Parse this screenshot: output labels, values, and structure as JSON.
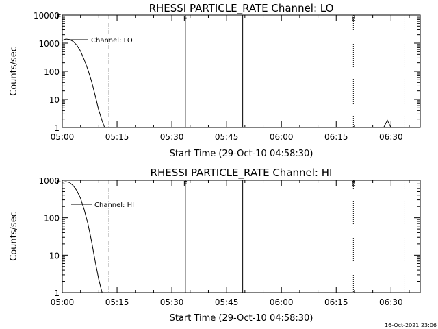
{
  "footer_timestamp": "16-Oct-2021 23:06",
  "chart_data": [
    {
      "type": "line",
      "title": "RHESSI PARTICLE_RATE Channel: LO",
      "xlabel": "Start Time (29-Oct-10 04:58:30)",
      "ylabel": "Counts/sec",
      "y_scale": "log",
      "ylim": [
        1,
        10000
      ],
      "y_ticks": [
        1,
        10,
        100,
        1000,
        10000
      ],
      "y_tick_labels": [
        "1",
        "10",
        "100",
        "1000",
        "10000"
      ],
      "xlim_minutes": [
        0,
        98
      ],
      "x_ticks_minutes": [
        0,
        15,
        30,
        45,
        60,
        75,
        90
      ],
      "x_tick_labels": [
        "05:00",
        "05:15",
        "05:30",
        "05:45",
        "06:00",
        "06:15",
        "06:30"
      ],
      "legend_label": "Channel: LO",
      "legend_placement": "top-left",
      "series": [
        {
          "x_minutes": [
            0,
            1,
            2,
            3,
            4,
            5,
            6,
            7,
            8,
            9,
            10,
            11,
            11.6
          ],
          "y": [
            1250,
            1400,
            1350,
            1150,
            850,
            520,
            260,
            115,
            45,
            14,
            4,
            1.6,
            1
          ]
        },
        {
          "x_minutes": [
            88,
            88.5,
            89,
            89.5,
            90
          ],
          "y": [
            1,
            1.35,
            1.8,
            1.35,
            1
          ]
        }
      ],
      "markers": [
        {
          "x_minutes": 12.8,
          "style": "dashdot",
          "label": ""
        },
        {
          "x_minutes": 33.7,
          "style": "solid",
          "label": "F"
        },
        {
          "x_minutes": 49.4,
          "style": "solid",
          "label": ""
        },
        {
          "x_minutes": 79.7,
          "style": "dotted",
          "label": "E"
        },
        {
          "x_minutes": 93.6,
          "style": "dotted",
          "label": ""
        }
      ],
      "corner_label": "E"
    },
    {
      "type": "line",
      "title": "RHESSI PARTICLE_RATE Channel: HI",
      "xlabel": "Start Time (29-Oct-10 04:58:30)",
      "ylabel": "Counts/sec",
      "y_scale": "log",
      "ylim": [
        1,
        1000
      ],
      "y_ticks": [
        1,
        10,
        100,
        1000
      ],
      "y_tick_labels": [
        "1",
        "10",
        "100",
        "1000"
      ],
      "xlim_minutes": [
        0,
        98
      ],
      "x_ticks_minutes": [
        0,
        15,
        30,
        45,
        60,
        75,
        90
      ],
      "x_tick_labels": [
        "05:00",
        "05:15",
        "05:30",
        "05:45",
        "06:00",
        "06:15",
        "06:30"
      ],
      "legend_label": "Channel: HI",
      "legend_placement": "top-left",
      "series": [
        {
          "x_minutes": [
            0,
            1,
            2,
            3,
            4,
            5,
            6,
            7,
            8,
            9,
            10,
            10.9
          ],
          "y": [
            880,
            920,
            870,
            720,
            530,
            330,
            165,
            70,
            24,
            7,
            2.2,
            1
          ]
        }
      ],
      "markers": [
        {
          "x_minutes": 12.8,
          "style": "dashdot",
          "label": ""
        },
        {
          "x_minutes": 33.7,
          "style": "solid",
          "label": "F"
        },
        {
          "x_minutes": 49.4,
          "style": "solid",
          "label": ""
        },
        {
          "x_minutes": 79.7,
          "style": "dotted",
          "label": "E"
        },
        {
          "x_minutes": 93.6,
          "style": "dotted",
          "label": ""
        }
      ],
      "corner_label": "E"
    }
  ]
}
